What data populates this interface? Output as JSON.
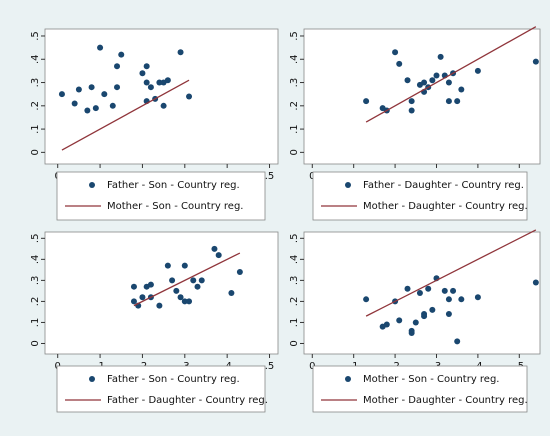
{
  "chart_data": [
    {
      "type": "scatter",
      "xlim": [
        -0.03,
        0.52
      ],
      "ylim": [
        -0.05,
        0.53
      ],
      "xticks": [
        0,
        {
          "value": 0.1,
          "label": ".1"
        },
        {
          "value": 0.2,
          "label": ".2"
        },
        {
          "value": 0.3,
          "label": ".3"
        },
        {
          "value": 0.4,
          "label": ".4"
        },
        {
          "value": 0.5,
          "label": ".5"
        }
      ],
      "yticks": [
        0,
        {
          "value": 0.1,
          "label": ".1"
        },
        {
          "value": 0.2,
          "label": ".2"
        },
        {
          "value": 0.3,
          "label": ".3"
        },
        {
          "value": 0.4,
          "label": ".4"
        },
        {
          "value": 0.5,
          "label": ".5"
        }
      ],
      "series": [
        {
          "name": "Father - Son - Country reg.",
          "color": "#1a476f",
          "mode": "scatter",
          "x": [
            0.01,
            0.04,
            0.05,
            0.07,
            0.08,
            0.09,
            0.1,
            0.11,
            0.13,
            0.14,
            0.15,
            0.14,
            0.2,
            0.21,
            0.21,
            0.21,
            0.22,
            0.23,
            0.24,
            0.25,
            0.25,
            0.26,
            0.29,
            0.31
          ],
          "values": [
            0.25,
            0.21,
            0.27,
            0.18,
            0.28,
            0.19,
            0.45,
            0.25,
            0.2,
            0.37,
            0.42,
            0.28,
            0.34,
            0.22,
            0.37,
            0.3,
            0.28,
            0.23,
            0.3,
            0.3,
            0.2,
            0.31,
            0.43,
            0.24
          ]
        },
        {
          "name": "Mother - Son - Country reg.",
          "color": "#90353b",
          "mode": "line",
          "x": [
            0.01,
            0.31
          ],
          "values": [
            0.01,
            0.31
          ]
        }
      ]
    },
    {
      "type": "scatter",
      "xlim": [
        -0.02,
        0.55
      ],
      "ylim": [
        -0.05,
        0.53
      ],
      "xticks": [
        0,
        {
          "value": 0.1,
          "label": ".1"
        },
        {
          "value": 0.2,
          "label": ".2"
        },
        {
          "value": 0.3,
          "label": ".3"
        },
        {
          "value": 0.4,
          "label": ".4"
        },
        {
          "value": 0.5,
          "label": ".5"
        }
      ],
      "yticks": [
        0,
        {
          "value": 0.1,
          "label": ".1"
        },
        {
          "value": 0.2,
          "label": ".2"
        },
        {
          "value": 0.3,
          "label": ".3"
        },
        {
          "value": 0.4,
          "label": ".4"
        },
        {
          "value": 0.5,
          "label": ".5"
        }
      ],
      "series": [
        {
          "name": "Father - Daughter - Country reg.",
          "color": "#1a476f",
          "mode": "scatter",
          "x": [
            0.13,
            0.17,
            0.18,
            0.2,
            0.21,
            0.23,
            0.24,
            0.24,
            0.26,
            0.27,
            0.27,
            0.28,
            0.29,
            0.3,
            0.31,
            0.32,
            0.33,
            0.33,
            0.34,
            0.35,
            0.36,
            0.4,
            0.54
          ],
          "values": [
            0.22,
            0.19,
            0.18,
            0.43,
            0.38,
            0.31,
            0.18,
            0.22,
            0.29,
            0.3,
            0.26,
            0.28,
            0.31,
            0.33,
            0.41,
            0.33,
            0.3,
            0.22,
            0.34,
            0.22,
            0.27,
            0.35,
            0.39
          ]
        },
        {
          "name": "Mother - Daughter - Country reg.",
          "color": "#90353b",
          "mode": "line",
          "x": [
            0.13,
            0.54
          ],
          "values": [
            0.13,
            0.54
          ]
        }
      ]
    },
    {
      "type": "scatter",
      "xlim": [
        -0.03,
        0.52
      ],
      "ylim": [
        -0.05,
        0.53
      ],
      "xticks": [
        0,
        {
          "value": 0.1,
          "label": ".1"
        },
        {
          "value": 0.2,
          "label": ".2"
        },
        {
          "value": 0.3,
          "label": ".3"
        },
        {
          "value": 0.4,
          "label": ".4"
        },
        {
          "value": 0.5,
          "label": ".5"
        }
      ],
      "yticks": [
        0,
        {
          "value": 0.1,
          "label": ".1"
        },
        {
          "value": 0.2,
          "label": ".2"
        },
        {
          "value": 0.3,
          "label": ".3"
        },
        {
          "value": 0.4,
          "label": ".4"
        },
        {
          "value": 0.5,
          "label": ".5"
        }
      ],
      "series": [
        {
          "name": "Father - Son - Country reg.",
          "color": "#1a476f",
          "mode": "scatter",
          "x": [
            0.18,
            0.18,
            0.19,
            0.2,
            0.21,
            0.22,
            0.22,
            0.24,
            0.26,
            0.27,
            0.28,
            0.29,
            0.3,
            0.3,
            0.31,
            0.32,
            0.33,
            0.34,
            0.37,
            0.38,
            0.41,
            0.43
          ],
          "values": [
            0.2,
            0.27,
            0.18,
            0.22,
            0.27,
            0.28,
            0.22,
            0.18,
            0.37,
            0.3,
            0.25,
            0.22,
            0.37,
            0.2,
            0.2,
            0.3,
            0.27,
            0.3,
            0.45,
            0.42,
            0.24,
            0.34
          ]
        },
        {
          "name": "Father - Daughter - Country reg.",
          "color": "#90353b",
          "mode": "line",
          "x": [
            0.18,
            0.43
          ],
          "values": [
            0.18,
            0.43
          ]
        }
      ]
    },
    {
      "type": "scatter",
      "xlim": [
        -0.02,
        0.55
      ],
      "ylim": [
        -0.05,
        0.53
      ],
      "xticks": [
        0,
        {
          "value": 0.1,
          "label": ".1"
        },
        {
          "value": 0.2,
          "label": ".2"
        },
        {
          "value": 0.3,
          "label": ".3"
        },
        {
          "value": 0.4,
          "label": ".4"
        },
        {
          "value": 0.5,
          "label": ".5"
        }
      ],
      "yticks": [
        0,
        {
          "value": 0.1,
          "label": ".1"
        },
        {
          "value": 0.2,
          "label": ".2"
        },
        {
          "value": 0.3,
          "label": ".3"
        },
        {
          "value": 0.4,
          "label": ".4"
        },
        {
          "value": 0.5,
          "label": ".5"
        }
      ],
      "series": [
        {
          "name": "Mother - Son - Country reg.",
          "color": "#1a476f",
          "mode": "scatter",
          "x": [
            0.13,
            0.17,
            0.18,
            0.2,
            0.21,
            0.23,
            0.24,
            0.24,
            0.25,
            0.26,
            0.27,
            0.27,
            0.28,
            0.29,
            0.3,
            0.32,
            0.33,
            0.33,
            0.34,
            0.35,
            0.36,
            0.4,
            0.54
          ],
          "values": [
            0.21,
            0.08,
            0.09,
            0.2,
            0.11,
            0.26,
            0.06,
            0.05,
            0.1,
            0.24,
            0.14,
            0.13,
            0.26,
            0.16,
            0.31,
            0.25,
            0.21,
            0.14,
            0.25,
            0.01,
            0.21,
            0.22,
            0.29
          ]
        },
        {
          "name": "Mother - Daughter - Country reg.",
          "color": "#90353b",
          "mode": "line",
          "x": [
            0.13,
            0.54
          ],
          "values": [
            0.13,
            0.54
          ]
        }
      ]
    }
  ]
}
